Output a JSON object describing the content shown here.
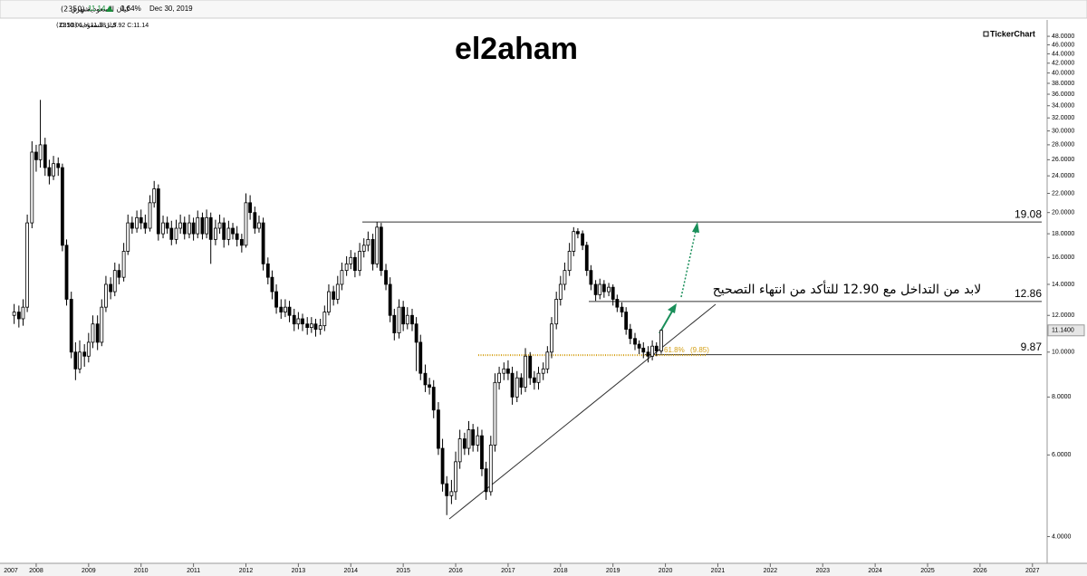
{
  "header": {
    "name": "كيان السعودية (2350)",
    "period": "شهري",
    "last": "11.14",
    "change": "0.64%",
    "date": "Dec 30, 2019",
    "sub_name": "كيان السعودية (2350)",
    "ohlc": "O:10.06 H:11.18 L:9.92 C:11.14",
    "logo": "TickerChart"
  },
  "chart_data": {
    "type": "candlestick",
    "title": "el2aham",
    "x": [
      2007.58,
      2007.67,
      2007.75,
      2007.83,
      2007.92,
      2008,
      2008.08,
      2008.17,
      2008.25,
      2008.33,
      2008.42,
      2008.5,
      2008.58,
      2008.67,
      2008.75,
      2008.83,
      2008.92,
      2009,
      2009.08,
      2009.17,
      2009.25,
      2009.33,
      2009.42,
      2009.5,
      2009.58,
      2009.67,
      2009.75,
      2009.83,
      2009.92,
      2010,
      2010.08,
      2010.17,
      2010.25,
      2010.33,
      2010.42,
      2010.5,
      2010.58,
      2010.67,
      2010.75,
      2010.83,
      2010.92,
      2011,
      2011.08,
      2011.17,
      2011.25,
      2011.33,
      2011.42,
      2011.5,
      2011.58,
      2011.67,
      2011.75,
      2011.83,
      2011.92,
      2012,
      2012.08,
      2012.17,
      2012.25,
      2012.33,
      2012.42,
      2012.5,
      2012.58,
      2012.67,
      2012.75,
      2012.83,
      2012.92,
      2013,
      2013.08,
      2013.17,
      2013.25,
      2013.33,
      2013.42,
      2013.5,
      2013.58,
      2013.67,
      2013.75,
      2013.83,
      2013.92,
      2014,
      2014.08,
      2014.17,
      2014.25,
      2014.33,
      2014.42,
      2014.5,
      2014.58,
      2014.67,
      2014.75,
      2014.83,
      2014.92,
      2015,
      2015.08,
      2015.17,
      2015.25,
      2015.33,
      2015.42,
      2015.5,
      2015.58,
      2015.67,
      2015.75,
      2015.83,
      2015.92,
      2016,
      2016.08,
      2016.17,
      2016.25,
      2016.33,
      2016.42,
      2016.5,
      2016.58,
      2016.67,
      2016.75,
      2016.83,
      2016.92,
      2017,
      2017.08,
      2017.17,
      2017.25,
      2017.33,
      2017.42,
      2017.5,
      2017.58,
      2017.67,
      2017.75,
      2017.83,
      2017.92,
      2018,
      2018.08,
      2018.17,
      2018.25,
      2018.33,
      2018.42,
      2018.5,
      2018.58,
      2018.67,
      2018.75,
      2018.83,
      2018.92,
      2019,
      2019.08,
      2019.17,
      2019.25,
      2019.33,
      2019.42,
      2019.5,
      2019.58,
      2019.67,
      2019.75,
      2019.83,
      2019.92
    ],
    "open": [
      12.0,
      12.2,
      11.8,
      12.5,
      19,
      27,
      26,
      28,
      25,
      24,
      25.5,
      25,
      17,
      13,
      10,
      9.2,
      10,
      9.8,
      10.5,
      11.5,
      10.5,
      12.5,
      14,
      13.5,
      15,
      14.5,
      16.5,
      19,
      18.5,
      19.5,
      19,
      18.5,
      21,
      22.5,
      18,
      19,
      18.5,
      17.5,
      18.5,
      19,
      18,
      19,
      18,
      19.5,
      18,
      19.5,
      17.5,
      18.5,
      19,
      17.5,
      18.5,
      18,
      17.5,
      17,
      21,
      20,
      18.5,
      19,
      15.5,
      14.5,
      13.5,
      12.5,
      12.2,
      12.5,
      12,
      11.5,
      11.8,
      11.5,
      11.3,
      11.5,
      11.2,
      11.4,
      12.2,
      13.5,
      13,
      14,
      15,
      15.5,
      16,
      15,
      16.5,
      17,
      17.5,
      15.5,
      18.6,
      15,
      14,
      12,
      11,
      12.5,
      11.5,
      12,
      11.5,
      10.5,
      9,
      8.5,
      8.4,
      7.5,
      6.2,
      5.2,
      4.9,
      5.0,
      5.8,
      6.5,
      6.2,
      6.8,
      6.3,
      6.6,
      5.6,
      5.0,
      6.3,
      8.6,
      9.0,
      9.2,
      9.0,
      8.0,
      8.8,
      8.4,
      9.8,
      8.8,
      8.6,
      9.0,
      9.2,
      10,
      11.5,
      13,
      14,
      15,
      16.5,
      18.2,
      18,
      17,
      15,
      14,
      13.3,
      14,
      13.5,
      13.8,
      13,
      12.5,
      12.2,
      11.2,
      10.7,
      10.4,
      10.2,
      10.0,
      9.8,
      10.3,
      10.06
    ],
    "high": [
      12.7,
      12.6,
      13,
      19.8,
      28.5,
      28,
      35,
      29,
      26,
      26.5,
      26.3,
      25.5,
      17.5,
      13.5,
      10.5,
      10.6,
      10.4,
      11,
      12,
      12,
      13,
      14.6,
      14.5,
      15.6,
      15.5,
      17.2,
      19.8,
      19.6,
      20.2,
      20.3,
      19.8,
      21.8,
      23.4,
      23,
      19.7,
      19.6,
      19.2,
      19.3,
      19.8,
      19.6,
      19.8,
      19.5,
      20.2,
      20,
      20.3,
      20,
      19.3,
      19.8,
      19.5,
      19.2,
      19,
      18.7,
      18,
      22,
      21.8,
      20.6,
      19.7,
      19.5,
      16,
      15,
      14,
      13,
      13,
      12.9,
      12.4,
      12.2,
      12.1,
      11.9,
      11.9,
      11.8,
      11.8,
      12.6,
      14,
      13.9,
      14.6,
      15.6,
      16.1,
      16.6,
      16.4,
      17.2,
      17.6,
      18.2,
      18,
      19.08,
      19,
      15.5,
      14.5,
      12.4,
      13,
      12.9,
      12.5,
      12.4,
      11.9,
      10.9,
      9.4,
      8.8,
      8.7,
      7.8,
      6.5,
      5.4,
      5.3,
      6.1,
      6.8,
      6.7,
      7.1,
      7,
      6.9,
      6.8,
      5.8,
      6.6,
      9,
      9.3,
      9.5,
      9.6,
      9.3,
      9.1,
      9,
      10.2,
      10,
      9.1,
      9.3,
      9.5,
      10.3,
      11.9,
      13.5,
      14.6,
      15.6,
      17.2,
      18.6,
      18.5,
      18.3,
      17.3,
      15.4,
      14.3,
      14.4,
      14.3,
      14.1,
      14,
      13.3,
      12.8,
      12.5,
      11.5,
      11,
      10.6,
      10.5,
      10.3,
      10.6,
      10.5,
      11.18
    ],
    "low": [
      11.5,
      11.3,
      11.4,
      12.2,
      18.5,
      24.5,
      25,
      24,
      23,
      23.5,
      24,
      16.5,
      12.6,
      9.7,
      8.7,
      9,
      9.3,
      9.5,
      10.2,
      10.1,
      10.3,
      12.2,
      13,
      13.2,
      14,
      14.2,
      16.2,
      18,
      18.1,
      18.4,
      18,
      18.2,
      20.5,
      17.4,
      17.6,
      18,
      17,
      17.1,
      18,
      17.5,
      17.6,
      17.4,
      17.6,
      17.5,
      17.6,
      15.5,
      17,
      18,
      16.8,
      17,
      17.5,
      16.9,
      16.4,
      16.8,
      19.3,
      18,
      18.1,
      15,
      14,
      13,
      12.1,
      11.8,
      11.9,
      11.6,
      11.1,
      11.2,
      11.1,
      10.9,
      11,
      10.8,
      10.9,
      11.1,
      12,
      12.6,
      12.7,
      13.6,
      14.6,
      15.1,
      14.5,
      14.6,
      16,
      16.5,
      15,
      15.2,
      14.6,
      13.6,
      11.6,
      10.6,
      10.7,
      11.1,
      11.2,
      11.1,
      9.1,
      8.7,
      8.2,
      8.1,
      7.2,
      6,
      5,
      4.45,
      4.7,
      4.8,
      5.6,
      6,
      6,
      6.1,
      6.1,
      5.4,
      4.8,
      4.9,
      6.1,
      8.3,
      8.7,
      8.7,
      7.7,
      7.8,
      8.1,
      8.2,
      8.5,
      8.3,
      8.3,
      8.7,
      9,
      9.7,
      11.2,
      12.6,
      13.6,
      14.6,
      16.1,
      17.6,
      16.6,
      14.6,
      13.6,
      12.9,
      13,
      13.1,
      13.2,
      12.6,
      12.2,
      11.9,
      10.9,
      10.4,
      10.1,
      9.9,
      9.7,
      9.5,
      9.6,
      9.8,
      9.92
    ],
    "close": [
      12.2,
      11.8,
      12.5,
      19,
      27,
      26,
      28,
      25,
      24,
      25.5,
      25,
      17,
      13,
      10,
      9.2,
      10,
      9.8,
      10.5,
      11.5,
      10.5,
      12.5,
      14,
      13.5,
      15,
      14.5,
      16.5,
      19,
      18.5,
      19.5,
      19,
      18.5,
      21,
      22.5,
      18,
      19,
      18.5,
      17.5,
      18.5,
      19,
      18,
      19,
      18,
      19.5,
      18,
      19.5,
      17.5,
      18.5,
      19,
      17.5,
      18.5,
      18,
      17.5,
      17,
      21,
      20,
      18.5,
      19,
      15.5,
      14.5,
      13.5,
      12.5,
      12.2,
      12.5,
      12,
      11.5,
      11.8,
      11.5,
      11.3,
      11.5,
      11.2,
      11.4,
      12.2,
      13.5,
      13,
      14,
      15,
      15.5,
      16,
      15,
      16.5,
      17,
      17.5,
      15.5,
      18.6,
      15,
      14,
      12,
      11,
      12.5,
      11.5,
      12,
      11.5,
      10.5,
      9,
      8.5,
      8.4,
      7.5,
      6.2,
      5.2,
      4.9,
      5.0,
      5.8,
      6.5,
      6.2,
      6.8,
      6.3,
      6.6,
      5.6,
      5.0,
      6.3,
      8.6,
      9.0,
      9.2,
      9.0,
      8.0,
      8.8,
      8.4,
      9.8,
      8.8,
      8.6,
      9.0,
      9.2,
      10,
      11.5,
      13,
      14,
      15,
      16.5,
      18.2,
      18,
      17,
      15,
      14,
      13.3,
      14,
      13.5,
      13.8,
      13,
      12.5,
      12.2,
      11.2,
      10.7,
      10.4,
      10.2,
      10.0,
      9.8,
      10.3,
      10.06,
      11.14
    ],
    "up_color": "#ffffff",
    "down_color": "#000000",
    "xlim": [
      2007.31,
      2027.28
    ],
    "xticks": [
      2007,
      2008,
      2009,
      2010,
      2011,
      2012,
      2013,
      2014,
      2015,
      2016,
      2017,
      2018,
      2019,
      2020,
      2021,
      2022,
      2023,
      2024,
      2025,
      2026,
      2027
    ],
    "ylim": [
      3.55,
      50
    ],
    "log_scale": true,
    "yticks": [
      {
        "value": 4,
        "label": "4.0000"
      },
      {
        "value": 6,
        "label": "6.0000"
      },
      {
        "value": 8,
        "label": "8.0000"
      },
      {
        "value": 10,
        "label": "10.0000"
      },
      {
        "value": 12,
        "label": "12.0000"
      },
      {
        "value": 14,
        "label": "14.0000"
      },
      {
        "value": 16,
        "label": "16.0000"
      },
      {
        "value": 18,
        "label": "18.0000"
      },
      {
        "value": 20,
        "label": "20.0000"
      },
      {
        "value": 22,
        "label": "22.0000"
      },
      {
        "value": 24,
        "label": "24.0000"
      },
      {
        "value": 26,
        "label": "26.0000"
      },
      {
        "value": 28,
        "label": "28.0000"
      },
      {
        "value": 30,
        "label": "30.0000"
      },
      {
        "value": 32,
        "label": "32.0000"
      },
      {
        "value": 34,
        "label": "34.0000"
      },
      {
        "value": 36,
        "label": "36.0000"
      },
      {
        "value": 38,
        "label": "38.0000"
      },
      {
        "value": 40,
        "label": "40.0000"
      },
      {
        "value": 42,
        "label": "42.0000"
      },
      {
        "value": 44,
        "label": "44.0000"
      },
      {
        "value": 46,
        "label": "46.0000"
      },
      {
        "value": 48,
        "label": "48.0000"
      }
    ],
    "levels": [
      19.08,
      12.86,
      9.87
    ],
    "fib": {
      "value": 9.85,
      "label": "61.8%",
      "value_label": "(9.85)",
      "color": "#d4a017"
    },
    "last_label": {
      "value": 11.14,
      "label": "11.1400"
    },
    "annotation": "لابد من التداخل مع 12.90 للتأكد من انتهاء التصحيح"
  }
}
